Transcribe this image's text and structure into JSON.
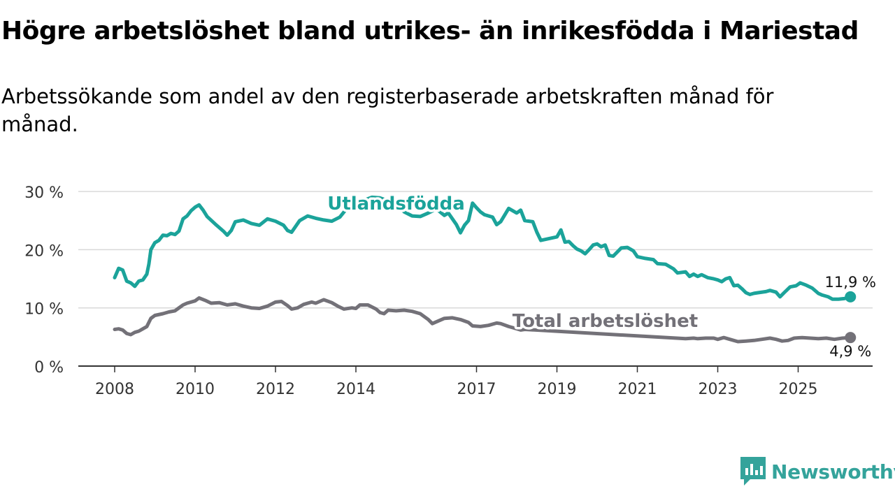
{
  "title": "Högre arbetslöshet bland utrikes- än inrikesfödda i Mariestad",
  "subtitle": "Arbetssökande som andel av den registerbaserade arbetskraften månad för månad.",
  "brand": "Newsworthy",
  "colors": {
    "foreign": "#1ba39a",
    "total": "#737178",
    "grid": "#d9d9d9",
    "axis": "#333333"
  },
  "chart_data": {
    "type": "line",
    "xlabel": "",
    "ylabel": "",
    "xlim": [
      2008,
      2026.45
    ],
    "ylim": [
      0,
      30
    ],
    "yticks": [
      0,
      10,
      20,
      30
    ],
    "ytick_labels": [
      "0 %",
      "10 %",
      "20 %",
      "30 %"
    ],
    "xticks": [
      2008,
      2010,
      2012,
      2014,
      2017,
      2019,
      2021,
      2023,
      2025
    ],
    "xtick_labels": [
      "2008",
      "2010",
      "2012",
      "2014",
      "2017",
      "2019",
      "2021",
      "2023",
      "2025"
    ],
    "series": [
      {
        "name": "Utlandsfödda",
        "color_key": "foreign",
        "end_label": "11,9 %",
        "points": [
          [
            2008.0,
            15.2
          ],
          [
            2008.1,
            16.8
          ],
          [
            2008.2,
            16.5
          ],
          [
            2008.3,
            14.6
          ],
          [
            2008.4,
            14.3
          ],
          [
            2008.5,
            13.7
          ],
          [
            2008.6,
            14.6
          ],
          [
            2008.7,
            14.8
          ],
          [
            2008.8,
            15.8
          ],
          [
            2008.85,
            17.5
          ],
          [
            2008.9,
            20.0
          ],
          [
            2009.0,
            21.2
          ],
          [
            2009.1,
            21.6
          ],
          [
            2009.2,
            22.5
          ],
          [
            2009.3,
            22.4
          ],
          [
            2009.4,
            22.8
          ],
          [
            2009.5,
            22.6
          ],
          [
            2009.6,
            23.2
          ],
          [
            2009.7,
            25.3
          ],
          [
            2009.8,
            25.8
          ],
          [
            2009.9,
            26.7
          ],
          [
            2010.0,
            27.3
          ],
          [
            2010.1,
            27.7
          ],
          [
            2010.2,
            26.8
          ],
          [
            2010.3,
            25.7
          ],
          [
            2010.5,
            24.4
          ],
          [
            2010.7,
            23.2
          ],
          [
            2010.8,
            22.5
          ],
          [
            2010.9,
            23.3
          ],
          [
            2011.0,
            24.8
          ],
          [
            2011.2,
            25.1
          ],
          [
            2011.4,
            24.5
          ],
          [
            2011.6,
            24.2
          ],
          [
            2011.8,
            25.3
          ],
          [
            2012.0,
            24.9
          ],
          [
            2012.2,
            24.2
          ],
          [
            2012.3,
            23.3
          ],
          [
            2012.4,
            23.0
          ],
          [
            2012.5,
            24.0
          ],
          [
            2012.6,
            25.0
          ],
          [
            2012.8,
            25.8
          ],
          [
            2013.0,
            25.4
          ],
          [
            2013.2,
            25.1
          ],
          [
            2013.4,
            24.9
          ],
          [
            2013.6,
            25.6
          ],
          [
            2013.8,
            27.3
          ],
          [
            2014.0,
            27.8
          ],
          [
            2014.2,
            28.5
          ],
          [
            2014.4,
            29.0
          ],
          [
            2014.6,
            28.9
          ],
          [
            2014.8,
            28.4
          ],
          [
            2015.0,
            27.9
          ],
          [
            2015.2,
            26.5
          ],
          [
            2015.4,
            25.8
          ],
          [
            2015.6,
            25.7
          ],
          [
            2015.8,
            26.3
          ],
          [
            2016.0,
            27.0
          ],
          [
            2016.2,
            25.9
          ],
          [
            2016.3,
            26.3
          ],
          [
            2016.5,
            24.3
          ],
          [
            2016.6,
            22.9
          ],
          [
            2016.7,
            24.2
          ],
          [
            2016.8,
            25.0
          ],
          [
            2016.9,
            28.0
          ],
          [
            2017.0,
            27.2
          ],
          [
            2017.1,
            26.5
          ],
          [
            2017.2,
            26.0
          ],
          [
            2017.4,
            25.6
          ],
          [
            2017.5,
            24.3
          ],
          [
            2017.6,
            24.8
          ],
          [
            2017.8,
            27.1
          ],
          [
            2018.0,
            26.3
          ],
          [
            2018.1,
            26.8
          ],
          [
            2018.2,
            25.0
          ],
          [
            2018.4,
            24.8
          ],
          [
            2018.5,
            23.0
          ],
          [
            2018.6,
            21.6
          ],
          [
            2018.8,
            21.9
          ],
          [
            2019.0,
            22.2
          ],
          [
            2019.1,
            23.4
          ],
          [
            2019.2,
            21.3
          ],
          [
            2019.3,
            21.4
          ],
          [
            2019.4,
            20.7
          ],
          [
            2019.5,
            20.1
          ],
          [
            2019.6,
            19.8
          ],
          [
            2019.7,
            19.3
          ],
          [
            2019.8,
            20.0
          ],
          [
            2019.9,
            20.8
          ],
          [
            2020.0,
            21.0
          ],
          [
            2020.1,
            20.5
          ],
          [
            2020.2,
            20.8
          ],
          [
            2020.3,
            19.0
          ],
          [
            2020.4,
            18.9
          ],
          [
            2020.5,
            19.6
          ],
          [
            2020.6,
            20.3
          ],
          [
            2020.75,
            20.4
          ],
          [
            2020.9,
            19.8
          ],
          [
            2021.0,
            18.8
          ],
          [
            2021.2,
            18.5
          ],
          [
            2021.4,
            18.3
          ],
          [
            2021.5,
            17.6
          ],
          [
            2021.7,
            17.5
          ],
          [
            2021.9,
            16.7
          ],
          [
            2022.0,
            16.0
          ],
          [
            2022.2,
            16.2
          ],
          [
            2022.3,
            15.4
          ],
          [
            2022.4,
            15.8
          ],
          [
            2022.5,
            15.4
          ],
          [
            2022.6,
            15.7
          ],
          [
            2022.75,
            15.2
          ],
          [
            2022.9,
            15.0
          ],
          [
            2023.0,
            14.8
          ],
          [
            2023.1,
            14.5
          ],
          [
            2023.2,
            15.0
          ],
          [
            2023.3,
            15.2
          ],
          [
            2023.4,
            13.8
          ],
          [
            2023.5,
            13.9
          ],
          [
            2023.6,
            13.3
          ],
          [
            2023.7,
            12.6
          ],
          [
            2023.8,
            12.3
          ],
          [
            2023.9,
            12.5
          ],
          [
            2024.0,
            12.6
          ],
          [
            2024.2,
            12.8
          ],
          [
            2024.3,
            13.0
          ],
          [
            2024.45,
            12.7
          ],
          [
            2024.55,
            11.9
          ],
          [
            2024.65,
            12.6
          ],
          [
            2024.8,
            13.6
          ],
          [
            2024.95,
            13.8
          ],
          [
            2025.05,
            14.3
          ],
          [
            2025.2,
            13.9
          ],
          [
            2025.35,
            13.4
          ],
          [
            2025.5,
            12.5
          ],
          [
            2025.6,
            12.2
          ],
          [
            2025.75,
            11.9
          ],
          [
            2025.85,
            11.5
          ],
          [
            2026.0,
            11.5
          ],
          [
            2026.15,
            11.6
          ],
          [
            2026.3,
            11.9
          ]
        ]
      },
      {
        "name": "Total arbetslöshet",
        "color_key": "total",
        "end_label": "4,9 %",
        "points": [
          [
            2008.0,
            6.3
          ],
          [
            2008.1,
            6.4
          ],
          [
            2008.2,
            6.2
          ],
          [
            2008.3,
            5.6
          ],
          [
            2008.4,
            5.4
          ],
          [
            2008.5,
            5.8
          ],
          [
            2008.6,
            6.0
          ],
          [
            2008.7,
            6.4
          ],
          [
            2008.8,
            6.8
          ],
          [
            2008.9,
            8.2
          ],
          [
            2009.0,
            8.7
          ],
          [
            2009.2,
            9.0
          ],
          [
            2009.35,
            9.3
          ],
          [
            2009.5,
            9.5
          ],
          [
            2009.6,
            10.0
          ],
          [
            2009.7,
            10.5
          ],
          [
            2009.8,
            10.8
          ],
          [
            2010.0,
            11.2
          ],
          [
            2010.1,
            11.7
          ],
          [
            2010.25,
            11.3
          ],
          [
            2010.4,
            10.8
          ],
          [
            2010.6,
            10.9
          ],
          [
            2010.8,
            10.5
          ],
          [
            2011.0,
            10.7
          ],
          [
            2011.2,
            10.3
          ],
          [
            2011.4,
            10.0
          ],
          [
            2011.6,
            9.9
          ],
          [
            2011.8,
            10.3
          ],
          [
            2012.0,
            11.0
          ],
          [
            2012.15,
            11.1
          ],
          [
            2012.3,
            10.4
          ],
          [
            2012.4,
            9.8
          ],
          [
            2012.55,
            10.0
          ],
          [
            2012.7,
            10.6
          ],
          [
            2012.9,
            11.0
          ],
          [
            2013.0,
            10.8
          ],
          [
            2013.2,
            11.4
          ],
          [
            2013.4,
            10.9
          ],
          [
            2013.55,
            10.3
          ],
          [
            2013.7,
            9.8
          ],
          [
            2013.9,
            10.0
          ],
          [
            2014.0,
            9.9
          ],
          [
            2014.1,
            10.5
          ],
          [
            2014.3,
            10.5
          ],
          [
            2014.5,
            9.8
          ],
          [
            2014.6,
            9.2
          ],
          [
            2014.7,
            9.0
          ],
          [
            2014.8,
            9.6
          ],
          [
            2015.0,
            9.5
          ],
          [
            2015.2,
            9.6
          ],
          [
            2015.4,
            9.4
          ],
          [
            2015.6,
            9.0
          ],
          [
            2015.8,
            8.0
          ],
          [
            2015.9,
            7.3
          ],
          [
            2016.0,
            7.6
          ],
          [
            2016.2,
            8.2
          ],
          [
            2016.4,
            8.3
          ],
          [
            2016.6,
            8.0
          ],
          [
            2016.8,
            7.5
          ],
          [
            2016.9,
            6.9
          ],
          [
            2017.1,
            6.8
          ],
          [
            2017.3,
            7.0
          ],
          [
            2017.5,
            7.4
          ],
          [
            2017.6,
            7.3
          ],
          [
            2017.8,
            6.8
          ],
          [
            2017.9,
            6.6
          ],
          [
            2018.1,
            6.2
          ],
          [
            2018.2,
            6.3
          ],
          [
            2022.2,
            4.7
          ],
          [
            2022.4,
            4.8
          ],
          [
            2022.5,
            4.7
          ],
          [
            2022.7,
            4.8
          ],
          [
            2022.9,
            4.8
          ],
          [
            2023.0,
            4.6
          ],
          [
            2023.15,
            4.9
          ],
          [
            2023.3,
            4.6
          ],
          [
            2023.5,
            4.2
          ],
          [
            2023.7,
            4.3
          ],
          [
            2023.9,
            4.4
          ],
          [
            2024.1,
            4.6
          ],
          [
            2024.3,
            4.8
          ],
          [
            2024.45,
            4.6
          ],
          [
            2024.6,
            4.3
          ],
          [
            2024.75,
            4.4
          ],
          [
            2024.9,
            4.8
          ],
          [
            2025.1,
            4.9
          ],
          [
            2025.3,
            4.8
          ],
          [
            2025.5,
            4.7
          ],
          [
            2025.7,
            4.8
          ],
          [
            2025.9,
            4.6
          ],
          [
            2026.1,
            4.8
          ],
          [
            2026.3,
            4.9
          ]
        ]
      }
    ],
    "annotations": [
      {
        "text": "Utlandsfödda",
        "x": 2015.0,
        "y": 26.9,
        "series": "Utlandsfödda"
      },
      {
        "text": "Total arbetslöshet",
        "x": 2020.2,
        "y": 6.7,
        "series": "Total arbetslöshet"
      }
    ]
  }
}
